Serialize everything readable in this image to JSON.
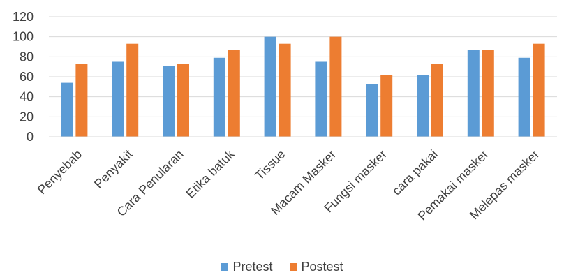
{
  "chart_data": {
    "type": "bar",
    "categories": [
      "Penyebab",
      "Penyakit",
      "Cara Penularan",
      "Etika batuk",
      "Tissue",
      "Macam Masker",
      "Fungsi masker",
      "cara pakai",
      "Pemakai masker",
      "Melepas masker"
    ],
    "series": [
      {
        "name": "Pretest",
        "color": "#5B9BD5",
        "values": [
          54,
          75,
          71,
          79,
          100,
          75,
          53,
          62,
          87,
          79
        ]
      },
      {
        "name": "Postest",
        "color": "#ED7D31",
        "values": [
          73,
          93,
          73,
          87,
          93,
          100,
          62,
          73,
          87,
          93
        ]
      }
    ],
    "ylim": [
      0,
      120
    ],
    "yticks": [
      "0",
      "20",
      "40",
      "60",
      "80",
      "100",
      "120"
    ],
    "grid": true,
    "legend_position": "bottom"
  }
}
